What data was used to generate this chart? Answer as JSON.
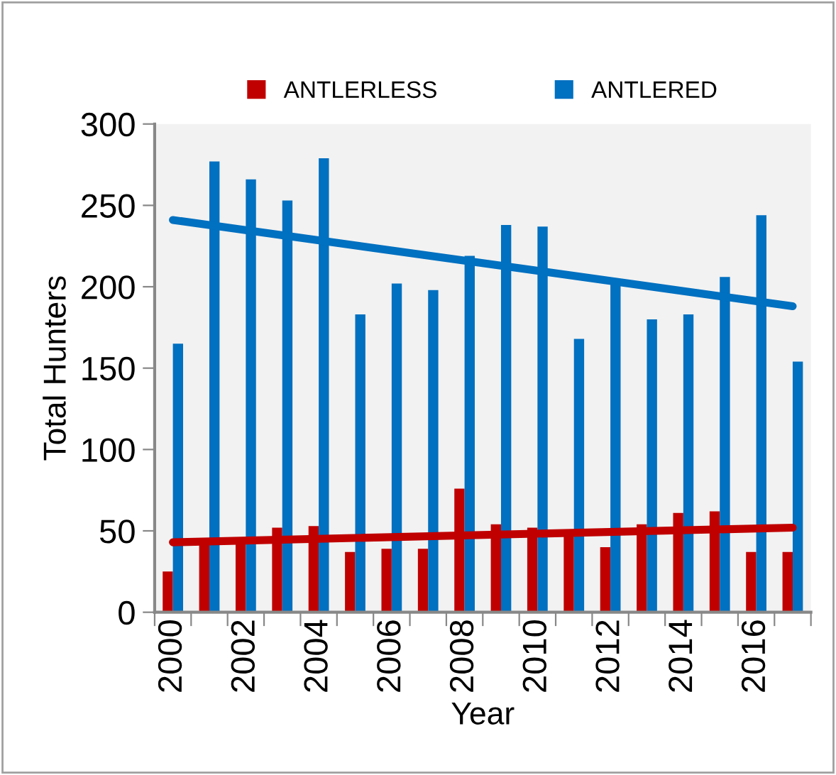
{
  "chart_data": {
    "type": "bar",
    "xlabel": "Year",
    "ylabel": "Total Hunters",
    "categories": [
      "2000",
      null,
      "2002",
      null,
      "2004",
      null,
      "2006",
      null,
      "2008",
      null,
      "2010",
      null,
      "2012",
      null,
      "2014",
      null,
      "2016",
      null
    ],
    "series": [
      {
        "name": "ANTLERLESS",
        "color": "#c00000",
        "values": [
          25,
          44,
          44,
          52,
          53,
          37,
          39,
          39,
          76,
          54,
          52,
          47,
          40,
          54,
          61,
          62,
          37,
          37
        ]
      },
      {
        "name": "ANTLERED",
        "color": "#0070c0",
        "values": [
          165,
          277,
          266,
          253,
          279,
          183,
          202,
          198,
          219,
          238,
          237,
          168,
          203,
          180,
          183,
          206,
          244,
          154
        ]
      },
      {
        "type": "line",
        "color": "#c00000",
        "values": [
          43,
          null,
          null,
          null,
          null,
          null,
          null,
          null,
          null,
          null,
          null,
          null,
          null,
          null,
          null,
          null,
          null,
          52
        ]
      },
      {
        "type": "line",
        "color": "#0070c0",
        "values": [
          241,
          null,
          null,
          null,
          null,
          null,
          null,
          null,
          null,
          null,
          null,
          null,
          null,
          null,
          null,
          null,
          null,
          188
        ]
      }
    ],
    "ylim": [
      0,
      300
    ],
    "yticks": [
      0,
      50,
      100,
      150,
      200,
      250,
      300
    ],
    "grid": false,
    "legend": "top"
  }
}
